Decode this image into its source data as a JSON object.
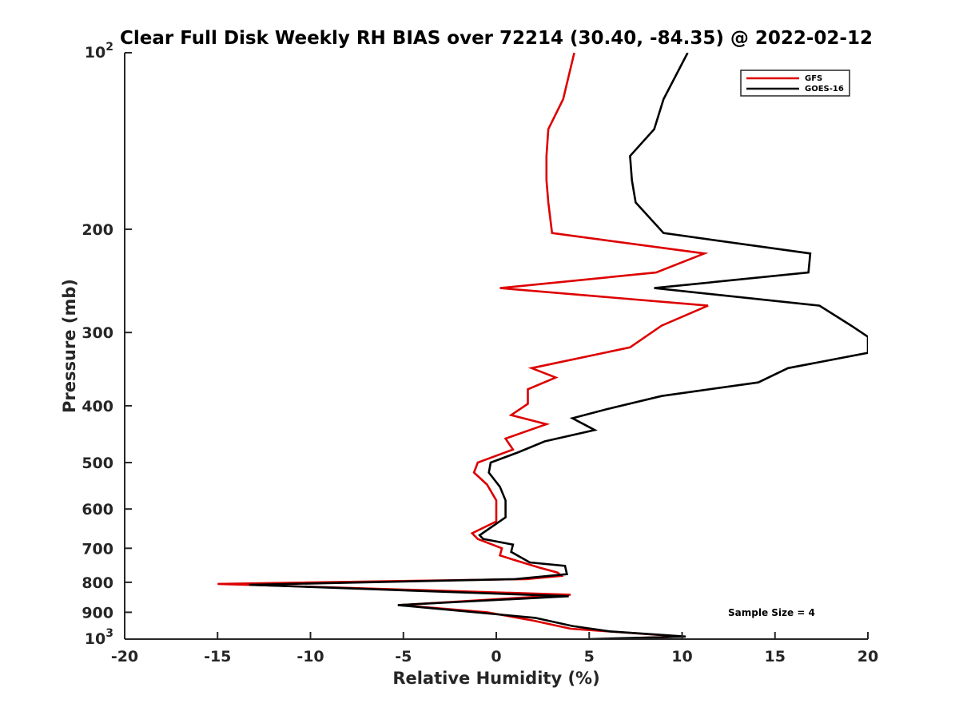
{
  "chart_data": {
    "type": "line",
    "title": "Clear Full Disk Weekly RH BIAS over 72214 (30.40, -84.35) @ 2022-02-12",
    "xlabel": "Relative Humidity (%)",
    "ylabel": "Pressure (mb)",
    "xlim": [
      -20,
      20
    ],
    "ylim": [
      100,
      1000
    ],
    "yscale": "log",
    "yreversed": true,
    "xticks": [
      -20,
      -15,
      -10,
      -5,
      0,
      5,
      10,
      15,
      20
    ],
    "xtick_labels": [
      "-20",
      "-15",
      "-10",
      "-5",
      "0",
      "5",
      "10",
      "15",
      "20"
    ],
    "yticks": [
      200,
      300,
      400,
      500,
      600,
      700,
      800,
      900
    ],
    "ytick_labels": [
      "200",
      "300",
      "400",
      "500",
      "600",
      "700",
      "800",
      "900"
    ],
    "ytick_top_base": "10",
    "ytick_top_exp": "2",
    "ytick_bottom_base": "10",
    "ytick_bottom_exp": "3",
    "legend_position": "top-right",
    "annotation": "Sample Size = 4",
    "series": [
      {
        "name": "GFS",
        "color": "#dd0000",
        "x": [
          4.2,
          3.6,
          2.8,
          2.7,
          2.7,
          2.8,
          3.0,
          11.2,
          8.6,
          0.2,
          11.4,
          8.9,
          7.2,
          1.9,
          3.2,
          1.7,
          1.7,
          0.8,
          2.7,
          0.5,
          0.9,
          -1.0,
          -1.2,
          -0.5,
          0.0,
          0.0,
          -1.3,
          -1.0,
          0.3,
          0.2,
          0.8,
          2.3,
          3.3,
          3.5,
          1.6,
          -15.0,
          4.0,
          -5.2,
          -0.5,
          2.0,
          4.0,
          10.0,
          5.7
        ],
        "y": [
          100,
          120,
          135,
          150,
          165,
          180,
          203,
          220,
          237,
          252,
          270,
          292,
          318,
          345,
          358,
          375,
          397,
          415,
          430,
          455,
          475,
          500,
          520,
          545,
          580,
          630,
          660,
          675,
          700,
          720,
          730,
          755,
          770,
          780,
          790,
          805,
          840,
          875,
          900,
          930,
          960,
          990,
          1000
        ]
      },
      {
        "name": "GOES-16",
        "color": "#000000",
        "x": [
          10.3,
          9.0,
          8.5,
          7.2,
          7.3,
          7.5,
          9.0,
          16.9,
          16.8,
          8.5,
          17.4,
          19.1,
          20.0,
          20.0,
          15.7,
          14.1,
          8.9,
          6.0,
          4.1,
          5.3,
          2.6,
          1.2,
          -0.3,
          -0.4,
          0.2,
          0.5,
          0.5,
          -0.9,
          -0.7,
          0.9,
          0.8,
          1.8,
          3.7,
          3.8,
          1.0,
          -13.3,
          3.9,
          -5.3,
          2.1,
          4.1,
          6.1,
          10.2,
          5.0
        ],
        "y": [
          100,
          120,
          135,
          150,
          165,
          180,
          203,
          220,
          237,
          252,
          270,
          292,
          305,
          325,
          345,
          365,
          385,
          405,
          420,
          440,
          460,
          480,
          500,
          520,
          550,
          580,
          620,
          665,
          675,
          690,
          710,
          740,
          750,
          775,
          790,
          808,
          845,
          875,
          920,
          950,
          970,
          990,
          1000
        ]
      }
    ]
  }
}
